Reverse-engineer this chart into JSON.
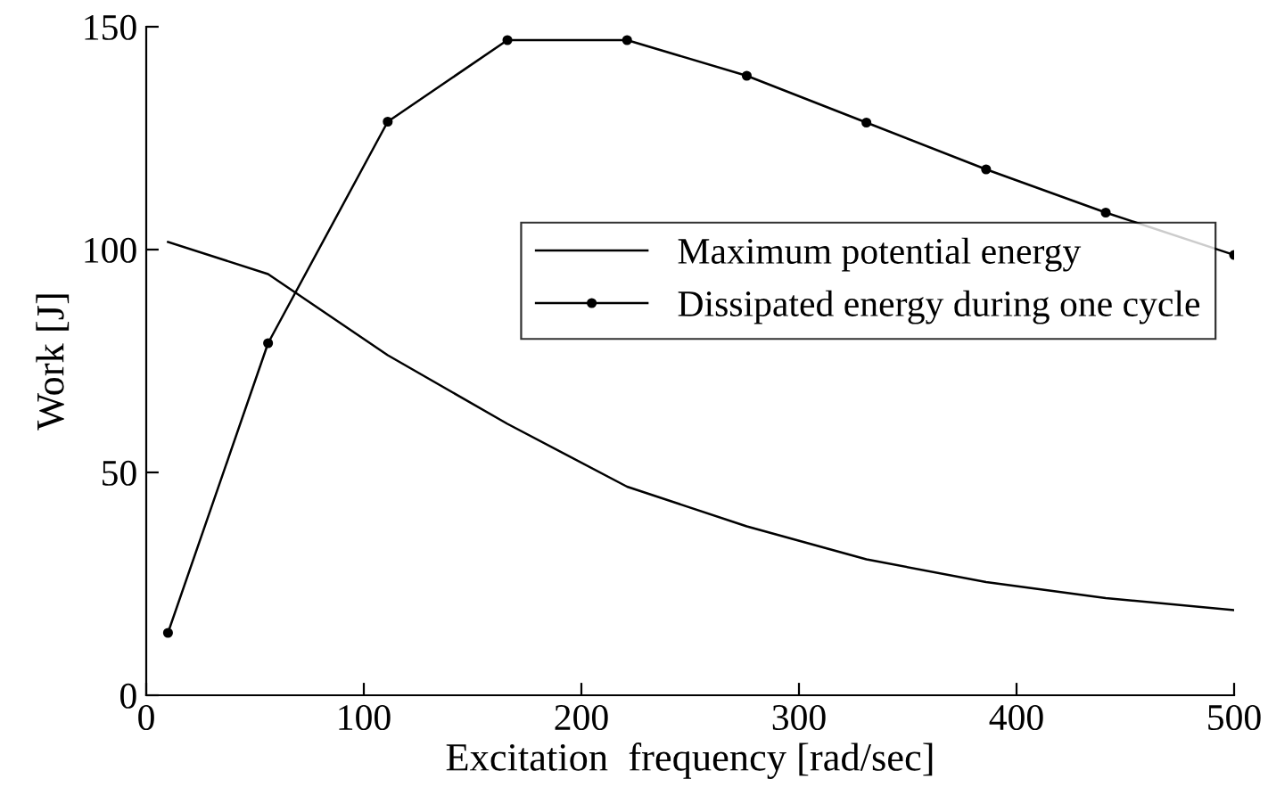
{
  "chart_data": {
    "type": "line",
    "xlabel": "Excitation  frequency [rad/sec]",
    "ylabel": "Work [J]",
    "x": [
      10,
      56,
      111,
      166,
      221,
      276,
      331,
      386,
      441,
      500
    ],
    "series": [
      {
        "name": "Maximum potential energy",
        "color": "#000000",
        "marker": "none",
        "values": [
          101.7,
          94.5,
          76.3,
          60.9,
          46.8,
          37.9,
          30.5,
          25.4,
          21.8,
          19.1
        ]
      },
      {
        "name": "Dissipated energy during one cycle",
        "color": "#000000",
        "marker": "circle",
        "values": [
          14,
          79,
          128.7,
          147,
          147,
          139,
          128.5,
          118,
          108.3,
          98.8
        ]
      }
    ],
    "xlim": [
      0,
      500
    ],
    "ylim": [
      0,
      150
    ],
    "xticks": [
      0,
      100,
      200,
      300,
      400,
      500
    ],
    "yticks": [
      0,
      50,
      100,
      150
    ],
    "grid": false,
    "legend": "right",
    "line_style": "solid"
  }
}
